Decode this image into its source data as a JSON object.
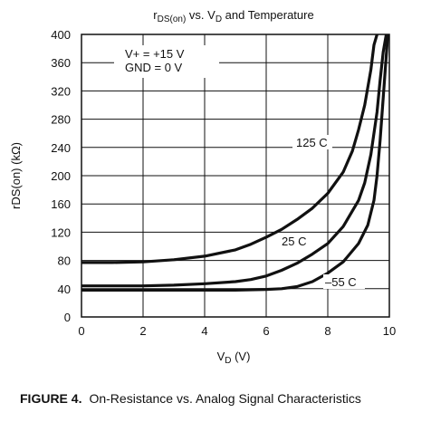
{
  "chart_data": {
    "type": "line",
    "title": {
      "main": "r",
      "sub": "DS(on)",
      "mid": " vs. V",
      "sub2": "D",
      "rest": " and Temperature"
    },
    "xlabel": {
      "main": "V",
      "sub": "D",
      "rest": "  (V)"
    },
    "ylabel": "rDS(on) (kΩ)",
    "xlim": [
      0,
      10
    ],
    "ylim": [
      0,
      400
    ],
    "xticks": [
      0,
      2,
      4,
      6,
      8,
      10
    ],
    "yticks": [
      0,
      40,
      80,
      120,
      160,
      200,
      240,
      280,
      320,
      360,
      400
    ],
    "grid": true,
    "conditions": [
      "V+ = +15 V",
      "GND = 0 V"
    ],
    "series": [
      {
        "name": "125 C",
        "x": [
          0,
          1,
          2,
          3,
          4,
          5,
          5.5,
          6,
          6.5,
          7,
          7.5,
          8,
          8.5,
          8.8,
          9,
          9.2,
          9.4,
          9.5,
          9.6
        ],
        "y": [
          77,
          77,
          78,
          81,
          86,
          95,
          103,
          113,
          124,
          138,
          154,
          175,
          205,
          235,
          265,
          300,
          350,
          385,
          400
        ]
      },
      {
        "name": "25 C",
        "x": [
          0,
          1,
          2,
          3,
          4,
          5,
          5.5,
          6,
          6.5,
          7,
          7.5,
          8,
          8.5,
          9,
          9.2,
          9.4,
          9.6,
          9.7,
          9.8,
          9.9
        ],
        "y": [
          44,
          44,
          44,
          45,
          47,
          50,
          53,
          58,
          66,
          76,
          89,
          104,
          128,
          165,
          190,
          230,
          290,
          335,
          375,
          400
        ]
      },
      {
        "name": "-55 C",
        "x": [
          0,
          1,
          2,
          3,
          4,
          5,
          6,
          6.5,
          7,
          7.5,
          8,
          8.5,
          9,
          9.3,
          9.5,
          9.6,
          9.7,
          9.8,
          9.9,
          9.95
        ],
        "y": [
          38,
          38,
          38,
          38,
          38,
          38,
          39,
          40,
          43,
          50,
          62,
          78,
          104,
          130,
          165,
          200,
          250,
          310,
          370,
          400
        ]
      }
    ],
    "series_labels": [
      "125 C",
      "25 C",
      "–55 C"
    ]
  },
  "figure_caption": {
    "prefix": "FIGURE  4.",
    "text": "On-Resistance vs. Analog Signal Characteristics"
  }
}
